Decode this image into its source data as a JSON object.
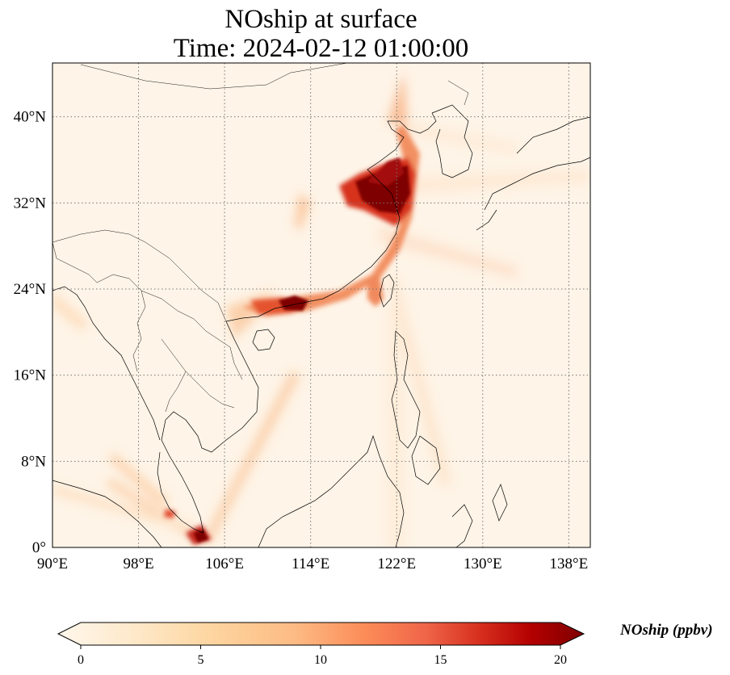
{
  "title": {
    "line1": "NOship at surface",
    "line2": "Time: 2024-02-12 01:00:00"
  },
  "map": {
    "lon_ticks": [
      "90°E",
      "98°E",
      "106°E",
      "114°E",
      "122°E",
      "130°E",
      "138°E"
    ],
    "lat_ticks": [
      "0°",
      "8°N",
      "16°N",
      "24°N",
      "32°N",
      "40°N"
    ],
    "lon_values": [
      90,
      98,
      106,
      114,
      122,
      130,
      138
    ],
    "lat_values": [
      0,
      8,
      16,
      24,
      32,
      40
    ],
    "lon_range": [
      90,
      140
    ],
    "lat_range": [
      0,
      45
    ],
    "gridlines": "dotted",
    "coastlines": true,
    "borders": true
  },
  "colorbar": {
    "label": "NOship (ppbv)",
    "ticks": [
      "0",
      "5",
      "10",
      "15",
      "20"
    ],
    "range": [
      0,
      20
    ],
    "colormap": "OrRd",
    "extend": "both",
    "colors": [
      "#fff7ec",
      "#fee8c8",
      "#fdd49e",
      "#fdbb84",
      "#fc8d59",
      "#ef6548",
      "#d7301f",
      "#b30000",
      "#7f0000"
    ]
  }
}
